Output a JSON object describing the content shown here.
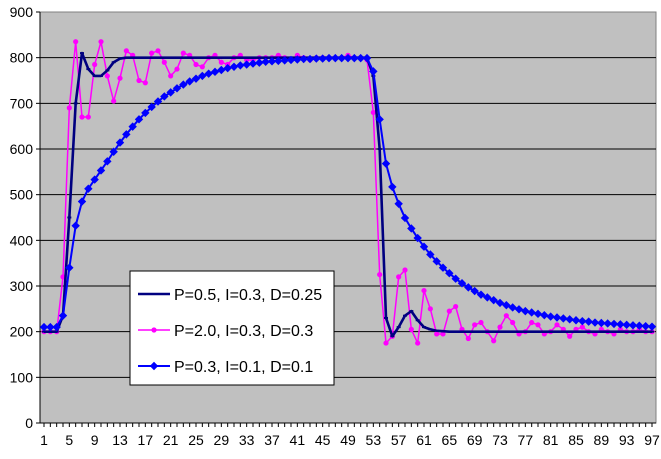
{
  "chart_data": {
    "type": "line",
    "title": "",
    "xlabel": "",
    "ylabel": "",
    "xlim": [
      1,
      97
    ],
    "ylim": [
      0,
      900
    ],
    "grid": true,
    "legend_position": "lower-left",
    "plot_background": "#C0C0C0",
    "x": [
      1,
      2,
      3,
      4,
      5,
      6,
      7,
      8,
      9,
      10,
      11,
      12,
      13,
      14,
      15,
      16,
      17,
      18,
      19,
      20,
      21,
      22,
      23,
      24,
      25,
      26,
      27,
      28,
      29,
      30,
      31,
      32,
      33,
      34,
      35,
      36,
      37,
      38,
      39,
      40,
      41,
      42,
      43,
      44,
      45,
      46,
      47,
      48,
      49,
      50,
      51,
      52,
      53,
      54,
      55,
      56,
      57,
      58,
      59,
      60,
      61,
      62,
      63,
      64,
      65,
      66,
      67,
      68,
      69,
      70,
      71,
      72,
      73,
      74,
      75,
      76,
      77,
      78,
      79,
      80,
      81,
      82,
      83,
      84,
      85,
      86,
      87,
      88,
      89,
      90,
      91,
      92,
      93,
      94,
      95,
      96,
      97
    ],
    "x_tick_labels": [
      "1",
      "5",
      "9",
      "13",
      "17",
      "21",
      "25",
      "29",
      "33",
      "37",
      "41",
      "45",
      "49",
      "53",
      "57",
      "61",
      "65",
      "69",
      "73",
      "77",
      "81",
      "85",
      "89",
      "93",
      "97"
    ],
    "y_tick_labels": [
      "0",
      "100",
      "200",
      "300",
      "400",
      "500",
      "600",
      "700",
      "800",
      "900"
    ],
    "series": [
      {
        "name": "P=0.5, I=0.3, D=0.25",
        "color": "#000080",
        "marker": "small-dash",
        "values": [
          200,
          200,
          200,
          235,
          450,
          700,
          810,
          775,
          760,
          760,
          772,
          790,
          798,
          800,
          800,
          800,
          800,
          800,
          800,
          800,
          800,
          800,
          800,
          800,
          800,
          800,
          800,
          800,
          800,
          800,
          800,
          800,
          800,
          800,
          800,
          800,
          800,
          800,
          800,
          800,
          800,
          800,
          800,
          800,
          800,
          800,
          800,
          800,
          800,
          800,
          800,
          800,
          760,
          600,
          230,
          190,
          210,
          235,
          245,
          225,
          210,
          205,
          202,
          201,
          200,
          200,
          200,
          200,
          200,
          200,
          200,
          200,
          200,
          200,
          200,
          200,
          200,
          200,
          200,
          200,
          200,
          200,
          200,
          200,
          200,
          200,
          200,
          200,
          200,
          200,
          200,
          200,
          200,
          200,
          200,
          200,
          200
        ]
      },
      {
        "name": "P=2.0, I=0.3, D=0.3",
        "color": "#FF00FF",
        "marker": "circle",
        "values": [
          200,
          200,
          200,
          320,
          690,
          835,
          670,
          670,
          785,
          835,
          760,
          705,
          755,
          815,
          805,
          750,
          745,
          810,
          815,
          790,
          760,
          775,
          810,
          805,
          785,
          780,
          800,
          805,
          790,
          785,
          800,
          805,
          795,
          795,
          800,
          800,
          800,
          805,
          800,
          795,
          805,
          800,
          795,
          800,
          800,
          800,
          800,
          800,
          805,
          800,
          800,
          795,
          680,
          325,
          175,
          190,
          320,
          335,
          205,
          175,
          290,
          250,
          195,
          195,
          245,
          255,
          205,
          185,
          215,
          220,
          200,
          180,
          210,
          235,
          220,
          195,
          200,
          220,
          215,
          195,
          200,
          215,
          205,
          190,
          205,
          210,
          200,
          195,
          205,
          200,
          195,
          205,
          200,
          200,
          205,
          200,
          200
        ]
      },
      {
        "name": "P=0.3, I=0.1, D=0.1",
        "color": "#0000FF",
        "marker": "diamond",
        "values": [
          210,
          210,
          210,
          235,
          340,
          432,
          485,
          513,
          533,
          553,
          573,
          594,
          614,
          632,
          649,
          665,
          679,
          692,
          704,
          715,
          724,
          733,
          741,
          748,
          754,
          760,
          765,
          769,
          773,
          777,
          780,
          783,
          785,
          787,
          789,
          791,
          792,
          793,
          794,
          795,
          796,
          797,
          797,
          798,
          798,
          799,
          799,
          799,
          799,
          799,
          799,
          799,
          770,
          665,
          568,
          517,
          480,
          449,
          426,
          405,
          386,
          369,
          354,
          340,
          328,
          316,
          306,
          297,
          289,
          281,
          275,
          269,
          263,
          258,
          253,
          249,
          245,
          242,
          239,
          236,
          233,
          231,
          229,
          227,
          225,
          223,
          222,
          220,
          219,
          218,
          217,
          216,
          215,
          214,
          213,
          212,
          211
        ]
      }
    ]
  }
}
